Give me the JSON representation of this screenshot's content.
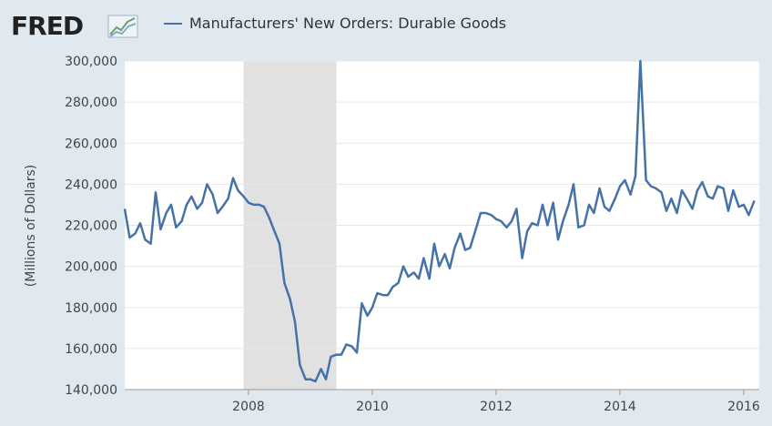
{
  "header": {
    "logo_text": "FRED",
    "logo_icon": "chart-line-icon",
    "legend_label": "Manufacturers' New Orders: Durable Goods"
  },
  "colors": {
    "series": "#4572a7",
    "recession": "#e1e1e1",
    "plot_bg": "#ffffff",
    "page_bg": "#e1e9f0"
  },
  "chart_data": {
    "type": "line",
    "title": "",
    "xlabel": "",
    "ylabel": "(Millions of Dollars)",
    "xlim": [
      2006.0,
      2016.25
    ],
    "ylim": [
      140000,
      300000
    ],
    "yticks": [
      140000,
      160000,
      180000,
      200000,
      220000,
      240000,
      260000,
      280000,
      300000
    ],
    "ytick_labels": [
      "140,000",
      "160,000",
      "180,000",
      "200,000",
      "220,000",
      "240,000",
      "260,000",
      "280,000",
      "300,000"
    ],
    "xticks": [
      2008,
      2010,
      2012,
      2014,
      2016
    ],
    "xtick_labels": [
      "2008",
      "2010",
      "2012",
      "2014",
      "2016"
    ],
    "grid": "horizontal",
    "recession": {
      "start": 2007.92,
      "end": 2009.42
    },
    "series": [
      {
        "name": "Manufacturers' New Orders: Durable Goods",
        "x": [
          2006.0,
          2006.08,
          2006.17,
          2006.25,
          2006.33,
          2006.42,
          2006.5,
          2006.58,
          2006.67,
          2006.75,
          2006.83,
          2006.92,
          2007.0,
          2007.08,
          2007.17,
          2007.25,
          2007.33,
          2007.42,
          2007.5,
          2007.58,
          2007.67,
          2007.75,
          2007.83,
          2007.92,
          2008.0,
          2008.08,
          2008.17,
          2008.25,
          2008.33,
          2008.42,
          2008.5,
          2008.58,
          2008.67,
          2008.75,
          2008.83,
          2008.92,
          2009.0,
          2009.08,
          2009.17,
          2009.25,
          2009.33,
          2009.42,
          2009.5,
          2009.58,
          2009.67,
          2009.75,
          2009.83,
          2009.92,
          2010.0,
          2010.08,
          2010.17,
          2010.25,
          2010.33,
          2010.42,
          2010.5,
          2010.58,
          2010.67,
          2010.75,
          2010.83,
          2010.92,
          2011.0,
          2011.08,
          2011.17,
          2011.25,
          2011.33,
          2011.42,
          2011.5,
          2011.58,
          2011.67,
          2011.75,
          2011.83,
          2011.92,
          2012.0,
          2012.08,
          2012.17,
          2012.25,
          2012.33,
          2012.42,
          2012.5,
          2012.58,
          2012.67,
          2012.75,
          2012.83,
          2012.92,
          2013.0,
          2013.08,
          2013.17,
          2013.25,
          2013.33,
          2013.42,
          2013.5,
          2013.58,
          2013.67,
          2013.75,
          2013.83,
          2013.92,
          2014.0,
          2014.08,
          2014.17,
          2014.25,
          2014.33,
          2014.42,
          2014.5,
          2014.58,
          2014.67,
          2014.75,
          2014.83,
          2014.92,
          2015.0,
          2015.08,
          2015.17,
          2015.25,
          2015.33,
          2015.42,
          2015.5,
          2015.58,
          2015.67,
          2015.75,
          2015.83,
          2015.92,
          2016.0,
          2016.08,
          2016.17
        ],
        "y": [
          228000,
          214000,
          216000,
          221000,
          213000,
          211000,
          236000,
          218000,
          226000,
          230000,
          219000,
          222000,
          230000,
          234000,
          228000,
          231000,
          240000,
          235000,
          226000,
          229000,
          233000,
          243000,
          237000,
          234000,
          231000,
          230000,
          230000,
          229000,
          224000,
          217000,
          211000,
          192000,
          184000,
          173000,
          152000,
          145000,
          145000,
          144000,
          150000,
          145000,
          156000,
          157000,
          157000,
          162000,
          161000,
          158000,
          182000,
          176000,
          180000,
          187000,
          186000,
          186000,
          190000,
          192000,
          200000,
          195000,
          197000,
          194000,
          204000,
          194000,
          211000,
          200000,
          206000,
          199000,
          209000,
          216000,
          208000,
          209000,
          218000,
          226000,
          226000,
          225000,
          223000,
          222000,
          219000,
          222000,
          228000,
          204000,
          217000,
          221000,
          220000,
          230000,
          220000,
          231000,
          213000,
          222000,
          230000,
          240000,
          219000,
          220000,
          230000,
          226000,
          238000,
          229000,
          227000,
          233000,
          239000,
          242000,
          235000,
          244000,
          300000,
          242000,
          239000,
          238000,
          236000,
          227000,
          233000,
          226000,
          237000,
          233000,
          228000,
          237000,
          241000,
          234000,
          233000,
          239000,
          238000,
          227000,
          237000,
          229000,
          230000,
          225000,
          232000
        ]
      }
    ]
  }
}
